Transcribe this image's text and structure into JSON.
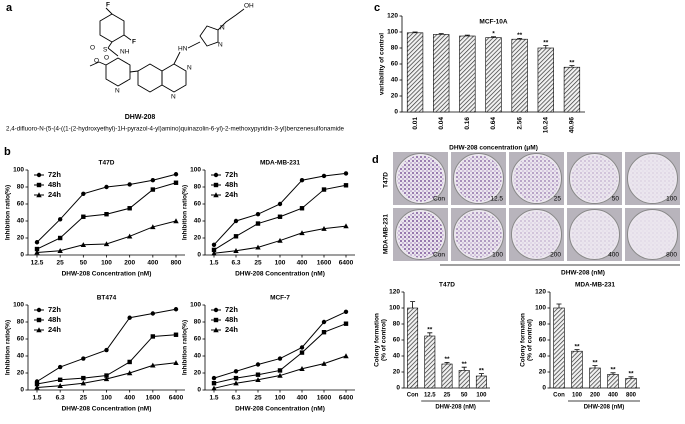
{
  "panel_labels": [
    "a",
    "b",
    "c",
    "d"
  ],
  "structure": {
    "name": "DHW-208",
    "iupac": "2,4-difluoro-N-(5-(4-((1-(2-hydroxyethyl)-1H-pyrazol-4-yl)amino)quinazolin-6-yl)-2-methoxypyridin-3-yl)benzenesulfonamide",
    "atoms": [
      "F",
      "F",
      "O",
      "S",
      "O",
      "NH",
      "O",
      "N",
      "HN",
      "N",
      "N",
      "N",
      "N",
      "OH"
    ]
  },
  "colony_images": {
    "rows": [
      "T47D",
      "MDA-MB-231"
    ],
    "labels": [
      [
        "Con",
        "12.5",
        "25",
        "50",
        "100"
      ],
      [
        "Con",
        "100",
        "200",
        "400",
        "800"
      ]
    ],
    "axis_label": "DHW-208 (nM)"
  },
  "chart_data": [
    {
      "type": "line",
      "title": "T47D",
      "ylabel": "Inhibition ratio(%)",
      "xlabel": "DHW-208 Concentration (nM)",
      "categories": [
        "12.5",
        "25",
        "50",
        "100",
        "200",
        "400",
        "800"
      ],
      "ylim": [
        0,
        100
      ],
      "yticks": [
        0,
        20,
        40,
        60,
        80,
        100
      ],
      "series": [
        {
          "name": "72h",
          "marker": "circle",
          "color": "#000000",
          "values": [
            15,
            42,
            72,
            80,
            83,
            88,
            95
          ]
        },
        {
          "name": "48h",
          "marker": "square",
          "color": "#000000",
          "values": [
            7,
            20,
            45,
            48,
            55,
            77,
            85
          ]
        },
        {
          "name": "24h",
          "marker": "triangle",
          "color": "#000000",
          "values": [
            3,
            5,
            12,
            13,
            22,
            33,
            40
          ]
        }
      ]
    },
    {
      "type": "line",
      "title": "MDA-MB-231",
      "ylabel": "Inhibition ratio(%)",
      "xlabel": "DHW-208 Concentration (nM)",
      "categories": [
        "1.5",
        "6.3",
        "25",
        "100",
        "400",
        "1600",
        "6400"
      ],
      "ylim": [
        0,
        100
      ],
      "yticks": [
        0,
        20,
        40,
        60,
        80,
        100
      ],
      "series": [
        {
          "name": "72h",
          "marker": "circle",
          "color": "#000000",
          "values": [
            12,
            40,
            48,
            60,
            88,
            93,
            96
          ]
        },
        {
          "name": "48h",
          "marker": "square",
          "color": "#000000",
          "values": [
            6,
            22,
            37,
            45,
            55,
            77,
            82
          ]
        },
        {
          "name": "24h",
          "marker": "triangle",
          "color": "#000000",
          "values": [
            2,
            5,
            9,
            17,
            26,
            31,
            34
          ]
        }
      ]
    },
    {
      "type": "line",
      "title": "BT474",
      "ylabel": "Inhibition ratio(%)",
      "xlabel": "DHW-208 Concentration (nM)",
      "categories": [
        "1.5",
        "6.3",
        "25",
        "100",
        "400",
        "1600",
        "6400"
      ],
      "ylim": [
        0,
        100
      ],
      "yticks": [
        0,
        20,
        40,
        60,
        80,
        100
      ],
      "series": [
        {
          "name": "72h",
          "marker": "circle",
          "color": "#000000",
          "values": [
            10,
            27,
            37,
            47,
            85,
            90,
            95
          ]
        },
        {
          "name": "48h",
          "marker": "square",
          "color": "#000000",
          "values": [
            7,
            12,
            14,
            17,
            33,
            63,
            65
          ]
        },
        {
          "name": "24h",
          "marker": "triangle",
          "color": "#000000",
          "values": [
            3,
            5,
            8,
            13,
            20,
            29,
            32
          ]
        }
      ]
    },
    {
      "type": "line",
      "title": "MCF-7",
      "ylabel": "Inhibition ratio(%)",
      "xlabel": "DHW-208 Concentration (nM)",
      "categories": [
        "1.5",
        "6.3",
        "25",
        "100",
        "400",
        "1600",
        "6400"
      ],
      "ylim": [
        0,
        100
      ],
      "yticks": [
        0,
        20,
        40,
        60,
        80,
        100
      ],
      "series": [
        {
          "name": "72h",
          "marker": "circle",
          "color": "#000000",
          "values": [
            14,
            22,
            30,
            37,
            50,
            80,
            92
          ]
        },
        {
          "name": "48h",
          "marker": "square",
          "color": "#000000",
          "values": [
            8,
            14,
            18,
            23,
            44,
            68,
            78
          ]
        },
        {
          "name": "24h",
          "marker": "triangle",
          "color": "#000000",
          "values": [
            2,
            8,
            12,
            17,
            25,
            31,
            40
          ]
        }
      ]
    },
    {
      "type": "bar",
      "title": "MCF-10A",
      "ylabel": [
        "variability of control"
      ],
      "xlabel": "DHW-208 concentration (μM)",
      "categories": [
        "0.01",
        "0.04",
        "0.16",
        "0.64",
        "2.56",
        "10.24",
        "40.96"
      ],
      "values": [
        99,
        97,
        95,
        93,
        91,
        80,
        56
      ],
      "errors": [
        1,
        1,
        1,
        1,
        1,
        3,
        2
      ],
      "significance": [
        null,
        null,
        null,
        "*",
        "**",
        "**",
        "**"
      ],
      "color": "#333333",
      "ylim": [
        0,
        120
      ],
      "yticks": [
        0,
        20,
        40,
        60,
        80,
        100,
        120
      ]
    },
    {
      "type": "bar",
      "title": "T47D",
      "ylabel": [
        "Colony formation",
        "(% of control)"
      ],
      "xlabel": "DHW-208 (nM)",
      "categories": [
        "Con",
        "12.5",
        "25",
        "50",
        "100"
      ],
      "values": [
        100,
        65,
        30,
        22,
        15
      ],
      "errors": [
        8,
        4,
        2,
        4,
        3
      ],
      "significance": [
        null,
        "**",
        "**",
        "**",
        "**"
      ],
      "color": "#333333",
      "ylim": [
        0,
        120
      ],
      "yticks": [
        0,
        20,
        40,
        60,
        80,
        100,
        120
      ]
    },
    {
      "type": "bar",
      "title": "MDA-MB-231",
      "ylabel": [
        "Colony formation",
        "(% of control)"
      ],
      "xlabel": "DHW-208 (nM)",
      "categories": [
        "Con",
        "100",
        "200",
        "400",
        "800"
      ],
      "values": [
        100,
        46,
        25,
        17,
        12
      ],
      "errors": [
        5,
        2,
        3,
        2,
        2
      ],
      "significance": [
        null,
        "**",
        "**",
        "**",
        "**"
      ],
      "color": "#333333",
      "ylim": [
        0,
        120
      ],
      "yticks": [
        0,
        20,
        40,
        60,
        80,
        100,
        120
      ]
    }
  ]
}
